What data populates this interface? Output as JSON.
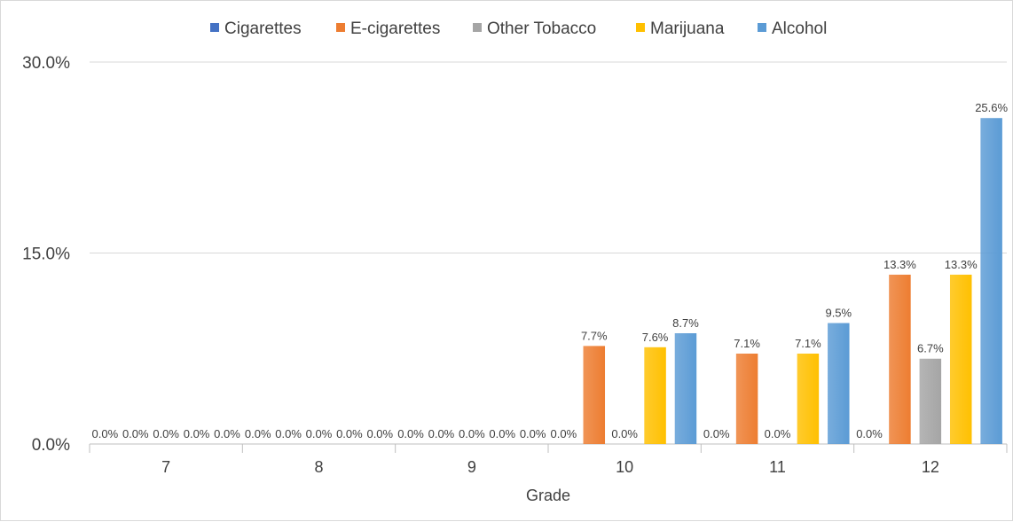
{
  "chart_data": {
    "type": "bar",
    "title": "",
    "xlabel": "Grade",
    "ylabel": "",
    "categories": [
      "7",
      "8",
      "9",
      "10",
      "11",
      "12"
    ],
    "ylim": [
      0,
      30
    ],
    "yticks": [
      "0.0%",
      "15.0%",
      "30.0%"
    ],
    "ytick_values": [
      0,
      15,
      30
    ],
    "grid": true,
    "legend_position": "top",
    "series": [
      {
        "name": "Cigarettes",
        "color": "#4472c4",
        "values": [
          0.0,
          0.0,
          0.0,
          0.0,
          0.0,
          0.0
        ],
        "labels": [
          "0.0%",
          "0.0%",
          "0.0%",
          "0.0%",
          "0.0%",
          "0.0%"
        ]
      },
      {
        "name": "E-cigarettes",
        "color": "#ed7d31",
        "values": [
          0.0,
          0.0,
          0.0,
          7.7,
          7.1,
          13.3
        ],
        "labels": [
          "0.0%",
          "0.0%",
          "0.0%",
          "7.7%",
          "7.1%",
          "13.3%"
        ]
      },
      {
        "name": "Other Tobacco",
        "color": "#a5a5a5",
        "values": [
          0.0,
          0.0,
          0.0,
          0.0,
          0.0,
          6.7
        ],
        "labels": [
          "0.0%",
          "0.0%",
          "0.0%",
          "0.0%",
          "0.0%",
          "6.7%"
        ]
      },
      {
        "name": "Marijuana",
        "color": "#ffc000",
        "values": [
          0.0,
          0.0,
          0.0,
          7.6,
          7.1,
          13.3
        ],
        "labels": [
          "0.0%",
          "0.0%",
          "0.0%",
          "7.6%",
          "7.1%",
          "13.3%"
        ]
      },
      {
        "name": "Alcohol",
        "color": "#5b9bd5",
        "values": [
          0.0,
          0.0,
          0.0,
          8.7,
          9.5,
          25.6
        ],
        "labels": [
          "0.0%",
          "0.0%",
          "0.0%",
          "8.7%",
          "9.5%",
          "25.6%"
        ]
      }
    ]
  }
}
